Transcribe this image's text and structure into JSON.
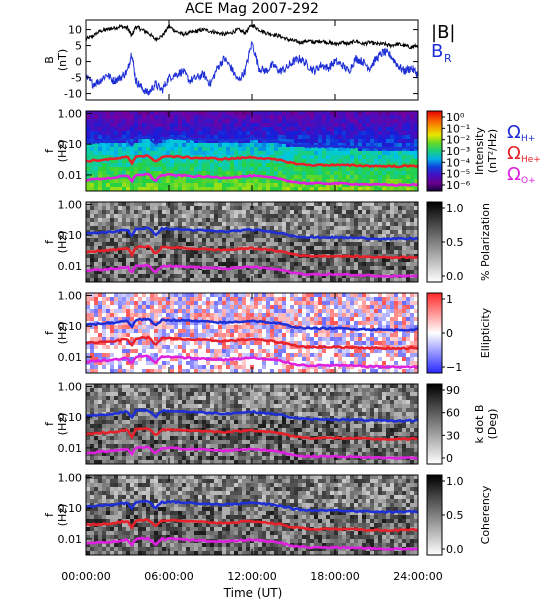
{
  "chart_data": {
    "type": "spectrogram",
    "title": "ACE Mag 2007-292",
    "x_tick_labels": [
      "00:00:00",
      "06:00:00",
      "12:00:00",
      "18:00:00",
      "24:00:00"
    ],
    "x_ticks_hours": [
      0,
      6,
      12,
      18,
      24
    ],
    "xlabel": "Time (UT)",
    "xlim_hours": [
      0,
      24
    ],
    "panels": [
      {
        "kind": "line",
        "ylabel_top": "B",
        "ylabel_bottom": "(nT)",
        "ylim": [
          -12,
          13
        ],
        "y_ticks": [
          10,
          5,
          0,
          -5,
          -10
        ],
        "y_tick_labels": [
          "10",
          "5",
          "0",
          "-5",
          "-10"
        ],
        "legend": [
          {
            "symbol": "|B|",
            "sub": "",
            "color": "#000000"
          },
          {
            "symbol": "B",
            "sub": "R",
            "color": "#1f2fd6"
          }
        ],
        "series": [
          {
            "name": "|B|",
            "color": "#000000",
            "x": [
              0,
              0.5,
              1,
              1.5,
              2,
              2.5,
              3,
              3.3,
              3.6,
              4,
              4.5,
              5,
              5.5,
              6,
              6.5,
              7,
              7.5,
              8,
              8.5,
              9,
              9.5,
              10,
              10.5,
              11,
              11.5,
              12,
              12.5,
              13,
              13.5,
              14,
              14.5,
              15,
              15.5,
              16,
              16.5,
              17,
              17.5,
              18,
              18.5,
              19,
              19.5,
              20,
              20.5,
              21,
              21.5,
              22,
              22.5,
              23,
              23.5,
              24
            ],
            "y": [
              7,
              8,
              9.5,
              10,
              10.5,
              11,
              10.5,
              8,
              11,
              10,
              9,
              7,
              8,
              11,
              9.5,
              8.5,
              9,
              9.5,
              10,
              9.5,
              9,
              8.5,
              9,
              10,
              9,
              11.5,
              10,
              9,
              8.5,
              8,
              7,
              6.5,
              6,
              6.5,
              6,
              6.5,
              6,
              5.5,
              6,
              5.5,
              6.5,
              5.5,
              6,
              5.5,
              5.5,
              5,
              5.5,
              5,
              4.5,
              5
            ]
          },
          {
            "name": "B_R",
            "color": "#1f2fd6",
            "x": [
              0,
              0.5,
              1,
              1.5,
              2,
              2.5,
              3,
              3.3,
              3.6,
              4,
              4.5,
              5,
              5.5,
              6,
              6.5,
              7,
              7.5,
              8,
              8.5,
              9,
              9.5,
              10,
              10.5,
              11,
              11.5,
              12,
              12.5,
              13,
              13.5,
              14,
              14.5,
              15,
              15.5,
              16,
              16.5,
              17,
              17.5,
              18,
              18.5,
              19,
              19.5,
              20,
              20.5,
              21,
              21.5,
              22,
              22.5,
              23,
              23.5,
              24
            ],
            "y": [
              -5,
              -7,
              -6,
              -4,
              -6,
              -5,
              -3,
              3,
              -6,
              -8,
              -10,
              -7,
              -9,
              -5,
              -4,
              -3,
              -6,
              -5,
              -4,
              -7,
              -2,
              1,
              -2,
              -6,
              -3,
              6,
              -2,
              -3,
              -1,
              -3,
              -2,
              0,
              1,
              -1,
              -3,
              -1,
              -2,
              0,
              -1,
              -3,
              1,
              0,
              -2,
              1,
              3,
              2,
              -1,
              -3,
              -2,
              -4
            ]
          }
        ]
      },
      {
        "kind": "spectrogram",
        "ylabel_top": "f",
        "ylabel_bottom": "(Hz)",
        "y_ticks": [
          1.0,
          0.1,
          0.01
        ],
        "y_tick_labels": [
          "1.00",
          "0.10",
          "0.01"
        ],
        "colorbar": {
          "palette": "rainbow",
          "labels": [
            "10⁰",
            "10⁻¹",
            "10⁻²",
            "10⁻³",
            "10⁻⁴",
            "10⁻⁵",
            "10⁻⁶"
          ],
          "title_top": "Intensity",
          "title_bottom": "(nT²/Hz)"
        },
        "legend": [
          {
            "symbol": "Ω",
            "sub": "H+",
            "color": "#1f2fd6"
          },
          {
            "symbol": "Ω",
            "sub": "He+",
            "color": "#e8202a"
          },
          {
            "symbol": "Ω",
            "sub": "O+",
            "color": "#e020e0"
          }
        ]
      },
      {
        "kind": "spectrogram",
        "ylabel_top": "f",
        "ylabel_bottom": "(Hz)",
        "y_ticks": [
          1.0,
          0.1,
          0.01
        ],
        "y_tick_labels": [
          "1.00",
          "0.10",
          "0.01"
        ],
        "colorbar": {
          "palette": "gray",
          "labels": [
            "1.0",
            "0.5",
            "0.0"
          ],
          "title_top": "% Polarization",
          "title_bottom": ""
        }
      },
      {
        "kind": "spectrogram",
        "ylabel_top": "f",
        "ylabel_bottom": "(Hz)",
        "y_ticks": [
          1.0,
          0.1,
          0.01
        ],
        "y_tick_labels": [
          "1.00",
          "0.10",
          "0.01"
        ],
        "colorbar": {
          "palette": "bwr",
          "labels": [
            "1",
            "0",
            "−1"
          ],
          "title_top": "Ellipticity",
          "title_bottom": ""
        }
      },
      {
        "kind": "spectrogram",
        "ylabel_top": "f",
        "ylabel_bottom": "(Hz)",
        "y_ticks": [
          1.0,
          0.1,
          0.01
        ],
        "y_tick_labels": [
          "1.00",
          "0.10",
          "0.01"
        ],
        "colorbar": {
          "palette": "gray",
          "labels": [
            "90",
            "60",
            "30",
            "0"
          ],
          "title_top": "k dot B",
          "title_bottom": "(Deg)"
        }
      },
      {
        "kind": "spectrogram",
        "ylabel_top": "f",
        "ylabel_bottom": "(Hz)",
        "y_ticks": [
          1.0,
          0.1,
          0.01
        ],
        "y_tick_labels": [
          "1.00",
          "0.10",
          "0.01"
        ],
        "colorbar": {
          "palette": "gray",
          "labels": [
            "1.0",
            "0.5",
            "0.0"
          ],
          "title_top": "Coherency",
          "title_bottom": ""
        }
      }
    ],
    "gyrofrequency_lines": [
      {
        "ion": "H+",
        "color": "#1f2fd6",
        "x": [
          0,
          2,
          3,
          3.3,
          3.6,
          4.5,
          5,
          5.5,
          6,
          8,
          10,
          11,
          12,
          13,
          14,
          15,
          16,
          18,
          20,
          22,
          24
        ],
        "y": [
          0.11,
          0.13,
          0.15,
          0.09,
          0.16,
          0.17,
          0.1,
          0.16,
          0.16,
          0.145,
          0.13,
          0.14,
          0.15,
          0.135,
          0.12,
          0.095,
          0.085,
          0.085,
          0.08,
          0.075,
          0.078
        ]
      },
      {
        "ion": "He+",
        "color": "#e8202a",
        "x": [
          0,
          2,
          3,
          3.3,
          3.6,
          4.5,
          5,
          5.5,
          6,
          8,
          10,
          11,
          12,
          13,
          14,
          15,
          16,
          18,
          20,
          22,
          24
        ],
        "y": [
          0.028,
          0.033,
          0.038,
          0.022,
          0.04,
          0.043,
          0.025,
          0.04,
          0.04,
          0.036,
          0.033,
          0.035,
          0.038,
          0.034,
          0.03,
          0.024,
          0.021,
          0.021,
          0.02,
          0.019,
          0.0195
        ]
      },
      {
        "ion": "O+",
        "color": "#e020e0",
        "x": [
          0,
          2,
          3,
          3.3,
          3.6,
          4.5,
          5,
          5.5,
          6,
          8,
          10,
          11,
          12,
          13,
          14,
          15,
          16,
          18,
          20,
          22,
          24
        ],
        "y": [
          0.0069,
          0.0081,
          0.0094,
          0.0056,
          0.01,
          0.0106,
          0.0062,
          0.01,
          0.01,
          0.009,
          0.0081,
          0.0087,
          0.0094,
          0.0084,
          0.0075,
          0.0059,
          0.0053,
          0.0053,
          0.005,
          0.0047,
          0.0048
        ]
      }
    ]
  }
}
